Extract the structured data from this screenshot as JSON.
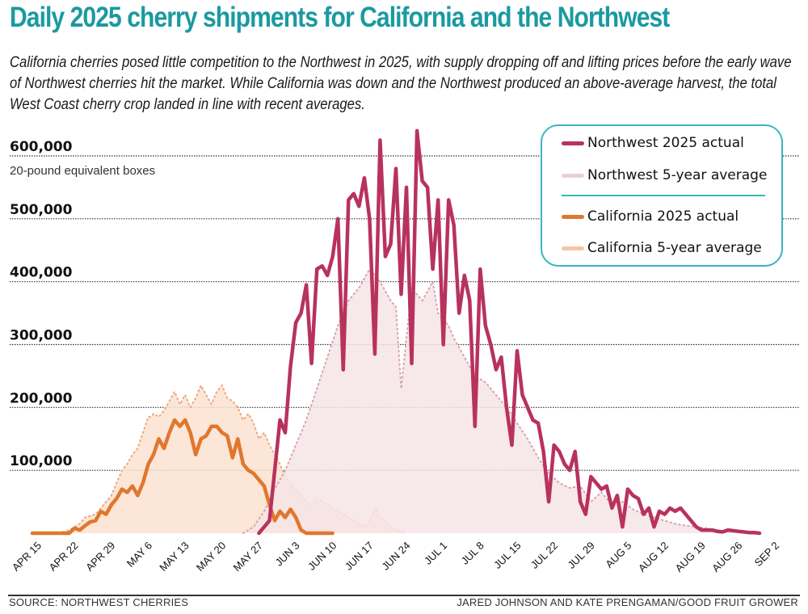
{
  "header": {
    "title": "Daily 2025 cherry shipments for California and the Northwest",
    "subtitle": "California cherries posed little competition to the Northwest in 2025, with supply dropping off and lifting prices before the early wave of Northwest cherries hit the market. While California was down and the Northwest produced an above-average harvest, the total West Coast cherry crop landed in line with recent averages."
  },
  "footer": {
    "source": "SOURCE: NORTHWEST CHERRIES",
    "credit": "JARED JOHNSON AND KATE PRENGAMAN/GOOD FRUIT GROWER"
  },
  "colors": {
    "title": "#1a9aa0",
    "nw_actual": "#b8325e",
    "nw_avg_line": "#d9a3b1",
    "nw_avg_fill": "#f6e4e6",
    "ca_actual": "#e0772f",
    "ca_avg_line": "#efa77f",
    "ca_avg_fill": "#fbe2d0",
    "legend_border": "#3bb6bb"
  },
  "chart_data": {
    "type": "line",
    "title": "Daily 2025 cherry shipments for California and the Northwest",
    "ylabel": "20-pound equivalent boxes",
    "xlabel": "",
    "ylim": [
      0,
      600000
    ],
    "yticks": [
      100000,
      200000,
      300000,
      400000,
      500000,
      600000
    ],
    "ytick_labels": [
      "100,000",
      "200,000",
      "300,000",
      "400,000",
      "500,000",
      "600,000"
    ],
    "grid": "horizontal-dotted",
    "legend_position": "top-right",
    "x_start": "APR 15",
    "x_unit": "days since Apr 15",
    "x_range": [
      0,
      140
    ],
    "xticks": [
      0,
      7,
      14,
      21,
      28,
      35,
      42,
      49,
      56,
      63,
      70,
      77,
      84,
      91,
      98,
      105,
      112,
      119,
      126,
      133,
      140
    ],
    "xtick_labels": [
      "APR 15",
      "APR 22",
      "APR 29",
      "MAY 6",
      "MAY 13",
      "MAY 20",
      "MAY 27",
      "JUN 3",
      "JUN 10",
      "JUN 17",
      "JUN 24",
      "JUL 1",
      "JUL 8",
      "JUL 15",
      "JUL 22",
      "JUL 29",
      "AUG 5",
      "AUG 12",
      "AUG 19",
      "AUG 26",
      "SEP 2"
    ],
    "series": [
      {
        "name": "California 5-year average",
        "style": "area-dotted",
        "x": [
          5,
          7,
          9,
          10,
          12,
          13,
          15,
          16,
          17,
          18,
          19,
          20,
          21,
          22,
          22.5,
          23,
          24,
          25,
          26,
          27,
          28,
          29,
          30,
          31,
          32,
          33,
          34,
          35,
          36,
          37,
          38,
          39,
          40,
          41,
          42,
          43,
          44,
          45,
          46,
          47,
          48,
          49,
          50,
          51,
          52,
          53,
          54,
          55,
          56,
          57,
          58,
          59,
          60,
          61,
          62,
          63,
          64,
          65,
          66,
          67,
          68,
          69,
          70,
          71
        ],
        "values": [
          0,
          5000,
          15000,
          25000,
          30000,
          40000,
          60000,
          80000,
          100000,
          110000,
          125000,
          135000,
          160000,
          185000,
          185000,
          190000,
          185000,
          195000,
          210000,
          225000,
          205000,
          220000,
          200000,
          215000,
          235000,
          220000,
          205000,
          225000,
          235000,
          215000,
          210000,
          200000,
          180000,
          190000,
          175000,
          150000,
          160000,
          140000,
          125000,
          110000,
          90000,
          80000,
          70000,
          60000,
          50000,
          45000,
          55000,
          50000,
          45000,
          40000,
          35000,
          30000,
          25000,
          20000,
          15000,
          10000,
          20000,
          40000,
          25000,
          20000,
          10000,
          5000,
          3000,
          0
        ]
      },
      {
        "name": "California 2025 actual",
        "style": "line",
        "x": [
          0,
          7,
          8,
          9,
          10,
          11,
          12,
          13,
          14,
          15,
          16,
          17,
          18,
          19,
          20,
          21,
          22,
          23,
          24,
          25,
          26,
          27,
          28,
          29,
          30,
          31,
          32,
          33,
          34,
          35,
          36,
          37,
          38,
          39,
          40,
          41,
          42,
          43,
          44,
          45,
          46,
          47,
          48,
          49,
          50,
          51,
          52,
          53,
          54,
          55,
          56,
          57
        ],
        "values": [
          0,
          0,
          8000,
          5000,
          12000,
          18000,
          20000,
          35000,
          30000,
          45000,
          55000,
          70000,
          65000,
          75000,
          60000,
          80000,
          110000,
          125000,
          150000,
          135000,
          160000,
          180000,
          170000,
          180000,
          160000,
          125000,
          150000,
          155000,
          170000,
          170000,
          160000,
          155000,
          120000,
          150000,
          110000,
          100000,
          95000,
          85000,
          75000,
          45000,
          20000,
          35000,
          25000,
          38000,
          25000,
          5000,
          0,
          0,
          0,
          0,
          0,
          0
        ]
      },
      {
        "name": "Northwest 5-year average",
        "style": "area-dotted",
        "x": [
          40,
          42,
          44,
          46,
          48,
          50,
          52,
          54,
          56,
          58,
          60,
          62,
          64,
          66,
          68,
          69,
          70,
          72,
          74,
          76,
          77,
          78,
          79,
          80,
          82,
          84,
          86,
          88,
          90,
          92,
          94,
          96,
          98,
          100,
          102,
          104,
          106,
          108,
          110,
          112,
          114,
          116,
          118,
          120,
          122,
          124,
          126,
          128,
          130,
          132,
          134,
          136,
          138
        ],
        "values": [
          0,
          10000,
          35000,
          70000,
          100000,
          140000,
          180000,
          230000,
          280000,
          330000,
          370000,
          390000,
          420000,
          400000,
          370000,
          360000,
          230000,
          390000,
          370000,
          400000,
          350000,
          340000,
          330000,
          310000,
          280000,
          250000,
          240000,
          220000,
          200000,
          175000,
          150000,
          120000,
          95000,
          80000,
          72000,
          75000,
          50000,
          65000,
          45000,
          50000,
          38000,
          30000,
          25000,
          20000,
          15000,
          12000,
          10000,
          8000,
          5000,
          3000,
          2000,
          1000,
          0
        ]
      },
      {
        "name": "Northwest 2025 actual",
        "style": "line",
        "x": [
          43,
          45,
          46,
          47,
          48,
          49,
          50,
          51,
          52,
          53,
          54,
          55,
          56,
          57,
          58,
          59,
          60,
          61,
          62,
          63,
          64,
          65,
          66,
          67,
          68,
          69,
          70,
          71,
          72,
          73,
          74,
          75,
          76,
          77,
          78,
          79,
          80,
          81,
          82,
          83,
          84,
          85,
          86,
          87,
          88,
          89,
          90,
          91,
          92,
          93,
          94,
          95,
          96,
          97,
          98,
          99,
          100,
          101,
          102,
          103,
          104,
          105,
          106,
          107,
          108,
          109,
          110,
          111,
          112,
          113,
          114,
          115,
          116,
          117,
          118,
          119,
          120,
          121,
          122,
          123,
          124,
          125,
          126,
          127,
          128,
          129,
          130,
          131,
          132,
          133,
          134,
          135,
          136,
          137,
          138
        ],
        "values": [
          0,
          20000,
          100000,
          180000,
          160000,
          265000,
          335000,
          350000,
          395000,
          270000,
          420000,
          425000,
          410000,
          440000,
          500000,
          260000,
          530000,
          540000,
          520000,
          565000,
          500000,
          285000,
          625000,
          440000,
          460000,
          580000,
          380000,
          550000,
          270000,
          640000,
          560000,
          550000,
          420000,
          530000,
          300000,
          530000,
          490000,
          350000,
          410000,
          370000,
          170000,
          420000,
          330000,
          300000,
          260000,
          280000,
          200000,
          140000,
          290000,
          220000,
          200000,
          180000,
          175000,
          130000,
          50000,
          140000,
          130000,
          110000,
          100000,
          130000,
          50000,
          30000,
          90000,
          80000,
          70000,
          75000,
          40000,
          60000,
          10000,
          70000,
          60000,
          55000,
          30000,
          40000,
          10000,
          35000,
          30000,
          40000,
          35000,
          40000,
          30000,
          20000,
          10000,
          5000,
          5000,
          5000,
          3000,
          2000,
          5000,
          4000,
          3000,
          2000,
          1000,
          1000,
          0
        ]
      }
    ]
  },
  "legend": {
    "items": [
      {
        "label": "Northwest 2025 actual"
      },
      {
        "label": "Northwest 5-year average"
      },
      {
        "label": "California 2025 actual"
      },
      {
        "label": "California 5-year average"
      }
    ]
  }
}
